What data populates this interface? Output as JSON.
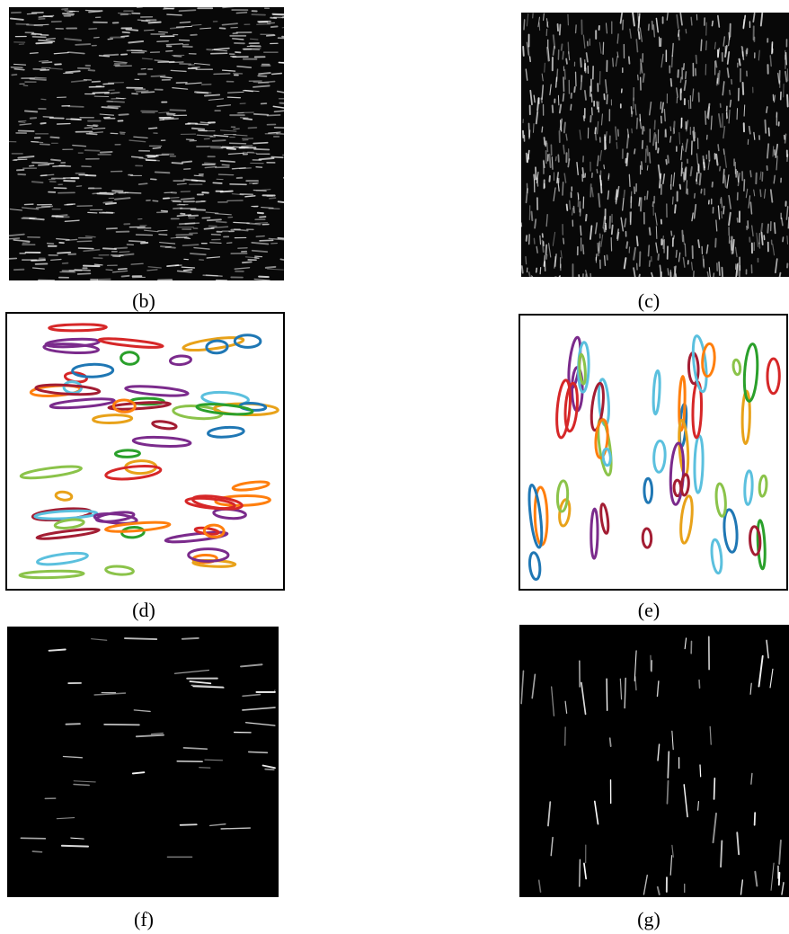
{
  "panels": [
    {
      "caption": "(b)"
    },
    {
      "caption": "(c)"
    },
    {
      "caption": "(d)"
    },
    {
      "caption": "(e)"
    },
    {
      "caption": "(f)"
    },
    {
      "caption": "(g)"
    }
  ]
}
